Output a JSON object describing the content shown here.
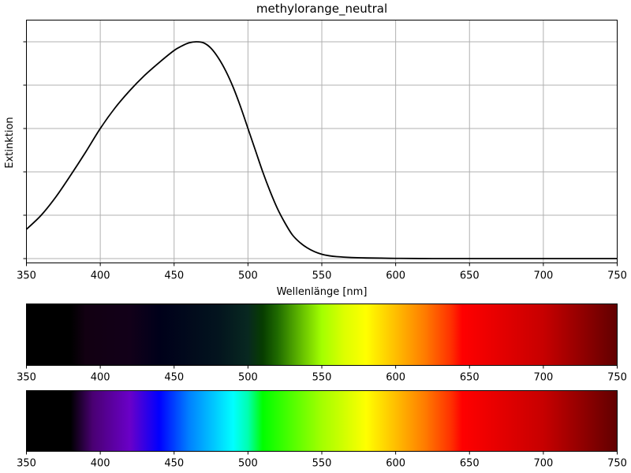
{
  "chart_data": [
    {
      "type": "line",
      "title": "methylorange_neutral",
      "xlabel": "Wellenlänge [nm]",
      "ylabel": "Extinktion",
      "xlim": [
        350,
        750
      ],
      "ylim": [
        -0.02,
        1.1
      ],
      "grid": true,
      "y_tick_values": [
        0.0,
        0.2,
        0.4,
        0.6,
        0.8,
        1.0
      ],
      "x_ticks": [
        "350",
        "400",
        "450",
        "500",
        "550",
        "600",
        "650",
        "700",
        "750"
      ],
      "series": [
        {
          "color": "#000000",
          "x": [
            350,
            360,
            370,
            380,
            390,
            400,
            410,
            420,
            430,
            440,
            450,
            455,
            460,
            465,
            470,
            475,
            480,
            485,
            490,
            495,
            500,
            505,
            510,
            515,
            520,
            525,
            530,
            535,
            540,
            545,
            550,
            555,
            560,
            570,
            580,
            590,
            600,
            625,
            650,
            700,
            750
          ],
          "y": [
            0.135,
            0.2,
            0.285,
            0.385,
            0.49,
            0.6,
            0.695,
            0.775,
            0.845,
            0.905,
            0.96,
            0.98,
            0.995,
            1.0,
            0.995,
            0.97,
            0.925,
            0.865,
            0.79,
            0.7,
            0.6,
            0.5,
            0.4,
            0.31,
            0.23,
            0.165,
            0.11,
            0.075,
            0.05,
            0.032,
            0.02,
            0.013,
            0.009,
            0.005,
            0.003,
            0.002,
            0.001,
            0.0,
            0.0,
            0.0,
            0.0
          ]
        }
      ]
    },
    {
      "type": "heatmap",
      "description_role": "absorbed-spectrum strip",
      "x_ticks": [
        "350",
        "400",
        "450",
        "500",
        "550",
        "600",
        "650",
        "700",
        "750"
      ],
      "xlim": [
        350,
        750
      ],
      "gradient": [
        {
          "nm": 350,
          "color": "#000000"
        },
        {
          "nm": 380,
          "color": "#000000"
        },
        {
          "nm": 390,
          "color": "#120012"
        },
        {
          "nm": 420,
          "color": "#120019"
        },
        {
          "nm": 440,
          "color": "#00001a"
        },
        {
          "nm": 480,
          "color": "#03141e"
        },
        {
          "nm": 500,
          "color": "#082820"
        },
        {
          "nm": 510,
          "color": "#073d00"
        },
        {
          "nm": 520,
          "color": "#1f6a00"
        },
        {
          "nm": 535,
          "color": "#5fb800"
        },
        {
          "nm": 550,
          "color": "#a3ff00"
        },
        {
          "nm": 565,
          "color": "#dcff00"
        },
        {
          "nm": 580,
          "color": "#ffff00"
        },
        {
          "nm": 600,
          "color": "#ffbe00"
        },
        {
          "nm": 620,
          "color": "#ff7b00"
        },
        {
          "nm": 638,
          "color": "#ff2e00"
        },
        {
          "nm": 645,
          "color": "#ff0000"
        },
        {
          "nm": 700,
          "color": "#c70000"
        },
        {
          "nm": 750,
          "color": "#610000"
        }
      ]
    },
    {
      "type": "heatmap",
      "description_role": "visible-spectrum strip",
      "x_ticks": [
        "350",
        "400",
        "450",
        "500",
        "550",
        "600",
        "650",
        "700",
        "750"
      ],
      "xlim": [
        350,
        750
      ],
      "gradient": [
        {
          "nm": 350,
          "color": "#000000"
        },
        {
          "nm": 380,
          "color": "#000000"
        },
        {
          "nm": 395,
          "color": "#4a0073"
        },
        {
          "nm": 420,
          "color": "#6a00c8"
        },
        {
          "nm": 440,
          "color": "#0000ff"
        },
        {
          "nm": 460,
          "color": "#0080ff"
        },
        {
          "nm": 490,
          "color": "#00ffff"
        },
        {
          "nm": 500,
          "color": "#00ffb0"
        },
        {
          "nm": 510,
          "color": "#00ff00"
        },
        {
          "nm": 550,
          "color": "#a3ff00"
        },
        {
          "nm": 580,
          "color": "#ffff00"
        },
        {
          "nm": 600,
          "color": "#ffbe00"
        },
        {
          "nm": 620,
          "color": "#ff7b00"
        },
        {
          "nm": 638,
          "color": "#ff2e00"
        },
        {
          "nm": 645,
          "color": "#ff0000"
        },
        {
          "nm": 700,
          "color": "#c70000"
        },
        {
          "nm": 750,
          "color": "#610000"
        }
      ]
    }
  ]
}
